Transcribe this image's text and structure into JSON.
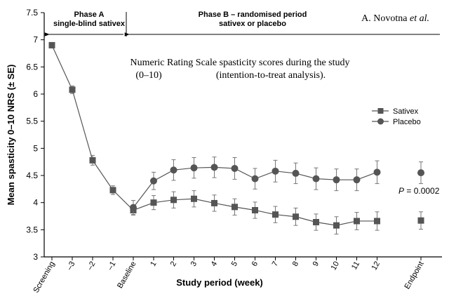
{
  "chart_data": {
    "type": "line",
    "title": "Numeric Rating Scale spasticity scores during the study",
    "subtitle_left": "(0–10)",
    "subtitle_right": "(intention-to-treat analysis).",
    "author": "A. Novotna et al.",
    "author_name": "A. Novotna",
    "author_etal": "et al.",
    "xlabel": "Study period (week)",
    "ylabel": "Mean spasticity 0–10 NRS (± SE)",
    "ylim": [
      3,
      7.5
    ],
    "yticks": [
      "3",
      "3.5",
      "4",
      "4.5",
      "5",
      "5.5",
      "6",
      "6.5",
      "7",
      "7.5"
    ],
    "categories": [
      "Screening",
      "–3",
      "–2",
      "–1",
      "Baseline",
      "1",
      "2",
      "3",
      "4",
      "5",
      "6",
      "7",
      "8",
      "9",
      "10",
      "11",
      "12",
      "Endpoint"
    ],
    "phase_a": {
      "line1": "Phase A",
      "line2": "single-blind sativex"
    },
    "phase_b": {
      "line1": "Phase B – randomised period",
      "line2": "sativex or placebo"
    },
    "p_value": {
      "label": "P",
      "text": " = 0.0002"
    },
    "legend_position": "right",
    "series": [
      {
        "name": "Sativex",
        "marker": "square",
        "color": "#555555",
        "values": [
          6.9,
          6.08,
          4.78,
          4.23,
          3.86,
          4.0,
          4.05,
          4.07,
          3.99,
          3.92,
          3.86,
          3.78,
          3.74,
          3.64,
          3.58,
          3.66,
          3.66,
          3.67
        ],
        "se": [
          0.05,
          0.07,
          0.09,
          0.08,
          0.09,
          0.13,
          0.15,
          0.15,
          0.15,
          0.15,
          0.15,
          0.15,
          0.16,
          0.15,
          0.16,
          0.16,
          0.17,
          0.16
        ]
      },
      {
        "name": "Placebo",
        "marker": "circle",
        "color": "#555555",
        "values": [
          null,
          null,
          null,
          null,
          3.91,
          4.4,
          4.6,
          4.64,
          4.65,
          4.63,
          4.44,
          4.58,
          4.54,
          4.44,
          4.42,
          4.42,
          4.56,
          4.55
        ],
        "se": [
          null,
          null,
          null,
          null,
          0.13,
          0.16,
          0.19,
          0.19,
          0.19,
          0.2,
          0.19,
          0.2,
          0.19,
          0.2,
          0.2,
          0.2,
          0.21,
          0.2
        ]
      }
    ]
  }
}
